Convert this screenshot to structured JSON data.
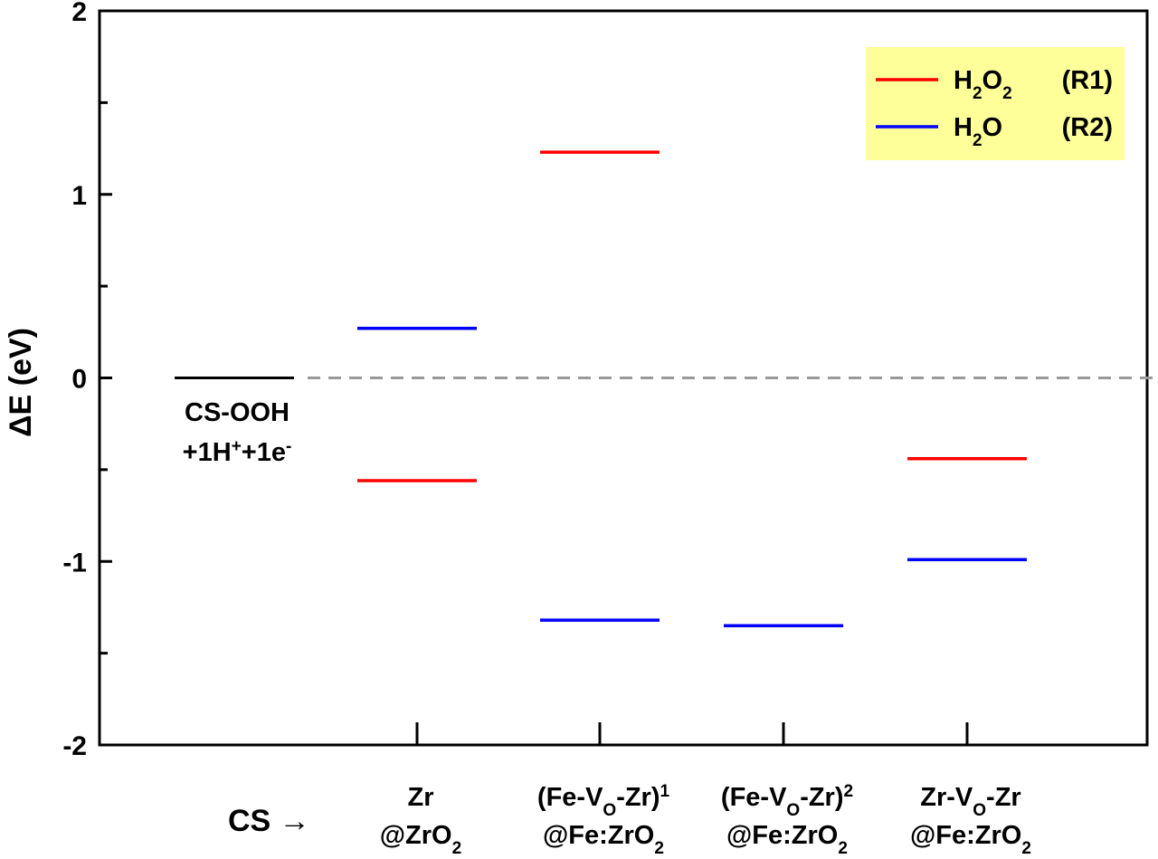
{
  "chart_data": {
    "type": "energy-level diagram",
    "ylabel": "ΔE (eV)",
    "ylim": [
      -2,
      2
    ],
    "y_ticks": [
      -2,
      -1,
      0,
      1,
      2
    ],
    "y_minor_ticks": [
      -1.5,
      -0.5,
      0.5,
      1.5
    ],
    "x_axis_label": "CS →",
    "categories": [
      {
        "line1": "Zr",
        "line2": "@ZrO",
        "line2_sub": "2"
      },
      {
        "line1": "(Fe-V",
        "line1_sub": "O",
        "line1_rest": "-Zr)",
        "line1_sup": "1",
        "line2": "@Fe:ZrO",
        "line2_sub": "2"
      },
      {
        "line1": "(Fe-V",
        "line1_sub": "O",
        "line1_rest": "-Zr)",
        "line1_sup": "2",
        "line2": "@Fe:ZrO",
        "line2_sub": "2"
      },
      {
        "line1": "Zr-V",
        "line1_sub": "O",
        "line1_rest": "-Zr",
        "line2": "@Fe:ZrO",
        "line2_sub": "2"
      }
    ],
    "reference": {
      "value": 0,
      "color": "#000000",
      "label_line1": "CS-OOH",
      "label_line2_a": "+1H",
      "label_line2_sup1": "+",
      "label_line2_b": "+1e",
      "label_line2_sup2": "-",
      "dashed_color": "#999999"
    },
    "series": [
      {
        "name": "H2O2 (R1)",
        "color": "#ff0000",
        "values": [
          -0.56,
          1.23,
          null,
          -0.44
        ]
      },
      {
        "name": "H2O (R2)",
        "color": "#0000ff",
        "values": [
          0.27,
          -1.32,
          -1.35,
          -0.99
        ]
      }
    ],
    "legend": {
      "placement": "top-right",
      "background": "#ffff99",
      "entries": [
        {
          "main": "H",
          "sub": "2",
          "main2": "O",
          "sub2": "2",
          "tag": "(R1)"
        },
        {
          "main": "H",
          "sub": "2",
          "main2": "O",
          "sub2": "",
          "tag": "(R2)"
        }
      ]
    },
    "grid": false
  }
}
